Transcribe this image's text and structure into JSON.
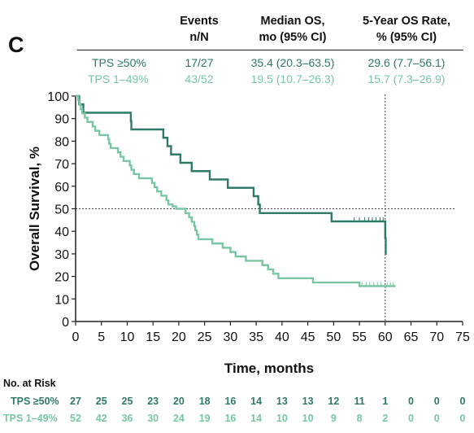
{
  "panel_label": "C",
  "table": {
    "headers": [
      {
        "line1": "Events",
        "line2": "n/N"
      },
      {
        "line1": "Median OS,",
        "line2": "mo (95% CI)"
      },
      {
        "line1": "5-Year OS Rate,",
        "line2": "% (95% CI)"
      }
    ],
    "rows": [
      {
        "group": "TPS ≥50%",
        "events": "17/27",
        "median": "35.4 (20.3–63.5)",
        "rate": "29.6 (7.7–56.1)"
      },
      {
        "group": "TPS 1–49%",
        "events": "43/52",
        "median": "19.5 (10.7–26.3)",
        "rate": "15.7 (7.3–26.9)"
      }
    ]
  },
  "colors": {
    "tps_high": "#2f7a68",
    "tps_low": "#78c7a2",
    "axis": "#222222",
    "reference": "#444444"
  },
  "chart_data": {
    "type": "line",
    "step": true,
    "xlabel": "Time, months",
    "ylabel": "Overall Survival, %",
    "xlim": [
      0,
      75
    ],
    "ylim": [
      0,
      100
    ],
    "xticks": [
      0,
      5,
      10,
      15,
      20,
      25,
      30,
      35,
      40,
      45,
      50,
      55,
      60,
      65,
      70,
      75
    ],
    "yticks": [
      0,
      10,
      20,
      30,
      40,
      50,
      60,
      70,
      80,
      90,
      100
    ],
    "reference_lines": {
      "y": 50,
      "x": 60
    },
    "series": [
      {
        "name": "TPS ≥50%",
        "color": "#2f7a68",
        "points": [
          [
            0,
            100
          ],
          [
            0.7,
            96.3
          ],
          [
            1.5,
            92.6
          ],
          [
            10,
            92.6
          ],
          [
            10.7,
            88.9
          ],
          [
            10.8,
            85.2
          ],
          [
            16.8,
            85.2
          ],
          [
            17,
            81.5
          ],
          [
            17.8,
            77.8
          ],
          [
            18.5,
            74.1
          ],
          [
            20.3,
            70.4
          ],
          [
            22.5,
            66.7
          ],
          [
            26,
            63
          ],
          [
            29.5,
            59.3
          ],
          [
            34.5,
            55.6
          ],
          [
            35.4,
            51.9
          ],
          [
            35.7,
            48.1
          ],
          [
            49.5,
            48.1
          ],
          [
            49.6,
            44.4
          ],
          [
            60,
            44.4
          ],
          [
            60,
            37
          ],
          [
            60.1,
            29.6
          ]
        ],
        "censor_x": [
          54,
          55,
          56,
          56.8,
          57.5,
          58.2,
          59,
          59.6
        ]
      },
      {
        "name": "TPS 1–49%",
        "color": "#78c7a2",
        "points": [
          [
            0,
            100
          ],
          [
            0.5,
            98.1
          ],
          [
            0.8,
            96.2
          ],
          [
            1,
            94.2
          ],
          [
            1.3,
            92.3
          ],
          [
            1.8,
            90.4
          ],
          [
            2.3,
            88.5
          ],
          [
            3.3,
            86.5
          ],
          [
            3.8,
            84.6
          ],
          [
            4.6,
            82.7
          ],
          [
            6.3,
            80.8
          ],
          [
            6.5,
            78.8
          ],
          [
            6.8,
            76.9
          ],
          [
            8.2,
            75
          ],
          [
            8.7,
            73.1
          ],
          [
            9.3,
            71.2
          ],
          [
            10.5,
            69.2
          ],
          [
            10.8,
            67.3
          ],
          [
            11.3,
            65.4
          ],
          [
            12.3,
            63.5
          ],
          [
            14.8,
            61.5
          ],
          [
            15.3,
            59.6
          ],
          [
            15.8,
            57.7
          ],
          [
            16.6,
            55.8
          ],
          [
            17.6,
            53.8
          ],
          [
            18,
            51.9
          ],
          [
            18.8,
            51
          ],
          [
            19.5,
            50
          ],
          [
            21,
            50
          ],
          [
            21.3,
            48.1
          ],
          [
            22,
            46.2
          ],
          [
            22.5,
            44.2
          ],
          [
            23,
            42.3
          ],
          [
            23.2,
            40.4
          ],
          [
            23.5,
            38.5
          ],
          [
            23.8,
            36.5
          ],
          [
            26,
            36.5
          ],
          [
            26.5,
            34.6
          ],
          [
            28.5,
            32.7
          ],
          [
            30,
            30.8
          ],
          [
            31,
            28.8
          ],
          [
            33,
            26.9
          ],
          [
            36,
            26.9
          ],
          [
            36.2,
            25
          ],
          [
            37.3,
            23.1
          ],
          [
            38.3,
            21.2
          ],
          [
            39.3,
            19.2
          ],
          [
            44.5,
            19.2
          ],
          [
            46,
            17.3
          ],
          [
            54.5,
            17.3
          ],
          [
            55,
            15.7
          ],
          [
            62,
            15.7
          ]
        ],
        "censor_x": [
          55.5,
          56.3,
          57,
          57.8,
          58.5,
          59.2,
          60.4,
          61,
          61.6
        ]
      }
    ],
    "at_risk": {
      "title": "No. at Risk",
      "times": [
        0,
        5,
        10,
        15,
        20,
        25,
        30,
        35,
        40,
        45,
        50,
        55,
        60,
        65,
        70,
        75
      ],
      "rows": [
        {
          "name": "TPS ≥50%",
          "values": [
            27,
            25,
            25,
            23,
            20,
            18,
            16,
            14,
            13,
            13,
            12,
            11,
            1,
            0,
            0,
            0
          ]
        },
        {
          "name": "TPS 1–49%",
          "values": [
            52,
            42,
            36,
            30,
            24,
            19,
            16,
            14,
            10,
            10,
            9,
            8,
            2,
            0,
            0,
            0
          ]
        }
      ]
    }
  }
}
